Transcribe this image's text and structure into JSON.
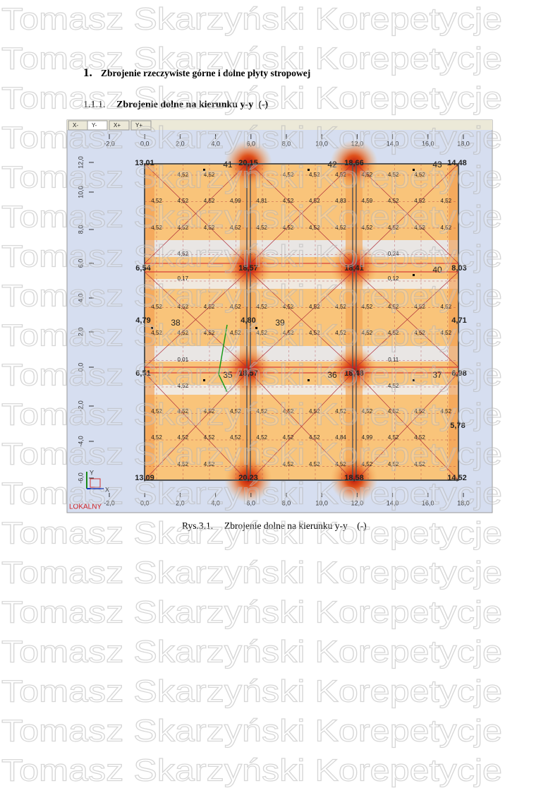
{
  "watermark": "Tomasz Skarzyński Korepetycje",
  "heading": {
    "number": "1.",
    "title": "Zbrojenie rzeczywiste górne i dolne płyty stropowej"
  },
  "subheading": {
    "number": "1.1.1.",
    "title": "Zbrojenie dolne na kierunku y-y  (-)"
  },
  "figure": {
    "tabs": [
      "X-",
      "Y-",
      "X+",
      "Y+"
    ],
    "x_axis": [
      "-2,0",
      "0,0",
      "2,0",
      "4,0",
      "6,0",
      "8,0",
      "10,0",
      "12,0",
      "14,0",
      "16,0",
      "18,0"
    ],
    "y_axis": [
      "12,0",
      "10,0",
      "8,0",
      "6,0",
      "4,0",
      "2,0",
      "0,0",
      "-2,0",
      "-4,0",
      "-6,0"
    ],
    "coordinate_system": "LOKALNY",
    "axis_x": "X",
    "axis_y": "Y",
    "node_values": [
      "13,01",
      "20,15",
      "18,66",
      "14,48",
      "6,54",
      "18,57",
      "18,41",
      "8,03",
      "4,79",
      "4,80",
      "4,71",
      "6,51",
      "18,57",
      "18,48",
      "6,98",
      "5,78",
      "13,09",
      "20,23",
      "18,58",
      "14,52"
    ],
    "node_numbers": [
      "41",
      "42",
      "43",
      "40",
      "38",
      "39",
      "35",
      "36",
      "37"
    ],
    "cell_values": [
      [
        null,
        "4,52",
        "4,52",
        null,
        null,
        "4,52",
        "4,52",
        "4,52",
        "4,52",
        "4,52",
        "4,52",
        null
      ],
      [
        "4,52",
        "4,52",
        "4,52",
        "4,99",
        "4,81",
        "4,52",
        "4,52",
        "4,83",
        "4,59",
        "4,52",
        "4,52",
        "4,52"
      ],
      [
        "4,52",
        "4,52",
        "4,52",
        "4,52",
        "4,52",
        "4,52",
        "4,52",
        "4,52",
        "4,52",
        "4,52",
        "4,52",
        "4,52"
      ],
      [
        null,
        "4,52",
        null,
        null,
        null,
        null,
        null,
        null,
        null,
        "0,24",
        null,
        null
      ],
      [
        null,
        "0,17",
        null,
        null,
        null,
        null,
        null,
        null,
        null,
        "0,12",
        null,
        null
      ],
      [
        "4,52",
        "4,52",
        "4,52",
        "4,52",
        "4,52",
        "4,52",
        "4,52",
        "4,52",
        "4,52",
        "4,52",
        "4,52",
        "4,52"
      ],
      [
        "4,52",
        "4,52",
        "4,52",
        "4,52",
        "4,52",
        "4,52",
        "4,52",
        "4,52",
        "4,52",
        "4,52",
        "4,52",
        "4,52"
      ],
      [
        null,
        "0,01",
        null,
        null,
        null,
        null,
        null,
        null,
        null,
        "0,11",
        null,
        null
      ],
      [
        null,
        "4,52",
        null,
        null,
        null,
        null,
        null,
        null,
        null,
        "4,52",
        null,
        null
      ],
      [
        "4,52",
        "4,52",
        "4,52",
        "4,52",
        "4,52",
        "4,52",
        "4,52",
        "4,52",
        "4,52",
        "4,52",
        "4,52",
        "4,52"
      ],
      [
        "4,52",
        "4,52",
        "4,52",
        "4,52",
        "4,52",
        "4,52",
        "4,52",
        "4,84",
        "4,99",
        "4,52",
        "4,52",
        null
      ],
      [
        null,
        "4,52",
        "4,52",
        null,
        null,
        "4,52",
        "4,52",
        "4,52",
        "4,52",
        "4,52",
        "4,52",
        null
      ]
    ]
  },
  "caption": {
    "number": "Rys.3.1.",
    "text": "Zbrojenie dolne na kierunku y-y    (-)"
  }
}
